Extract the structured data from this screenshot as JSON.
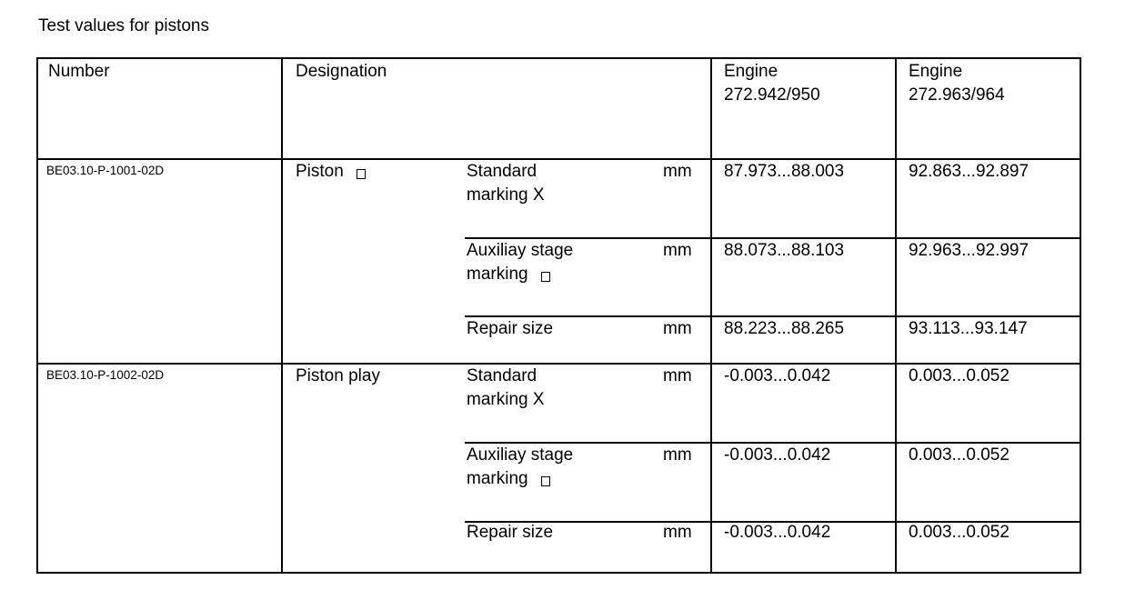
{
  "title": "Test values for pistons",
  "headers": {
    "number": "Number",
    "designation": "Designation",
    "engine1": "Engine\n272.942/950",
    "engine2": "Engine\n272.963/964"
  },
  "groups": [
    {
      "number": "BE03.10-P-1001-02D",
      "designation": "Piston",
      "rows": [
        {
          "label": "Standard\nmarking X",
          "unit": "mm",
          "e1": "87.973...88.003",
          "e2": "92.863...92.897"
        },
        {
          "label": "Auxiliay stage\nmarking",
          "unit": "mm",
          "e1": "88.073...88.103",
          "e2": "92.963...92.997"
        },
        {
          "label": "Repair size",
          "unit": "mm",
          "e1": "88.223...88.265",
          "e2": "93.113...93.147"
        }
      ]
    },
    {
      "number": "BE03.10-P-1002-02D",
      "designation": "Piston play",
      "rows": [
        {
          "label": "Standard\nmarking X",
          "unit": "mm",
          "e1": "-0.003...0.042",
          "e2": "0.003...0.052"
        },
        {
          "label": "Auxiliay stage\nmarking",
          "unit": "mm",
          "e1": "-0.003...0.042",
          "e2": "0.003...0.052"
        },
        {
          "label": "Repair size",
          "unit": "mm",
          "e1": "-0.003...0.042",
          "e2": "0.003...0.052"
        }
      ]
    }
  ]
}
